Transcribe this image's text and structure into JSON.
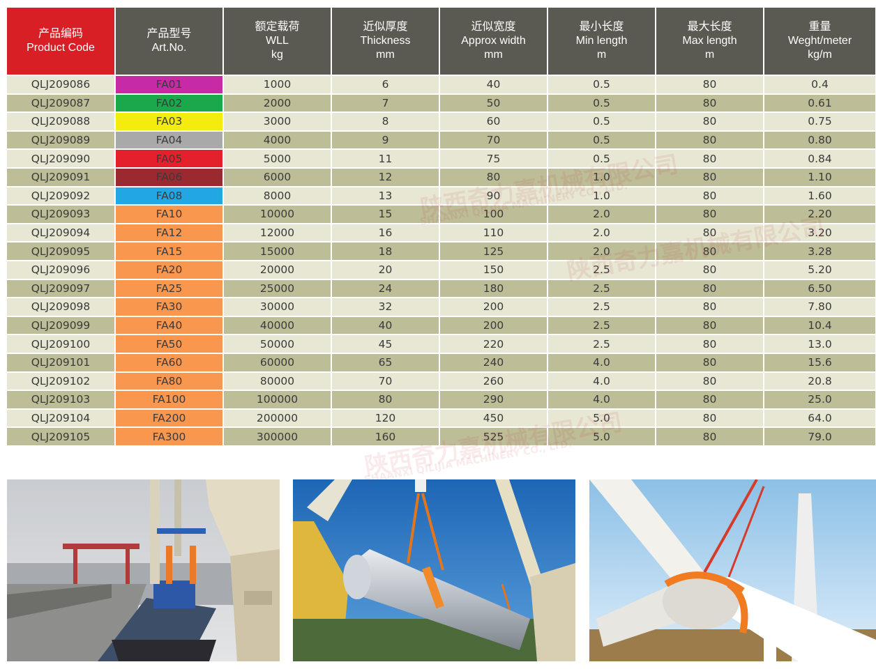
{
  "table": {
    "headers": [
      {
        "lines": [
          "产品编码",
          "Product Code"
        ]
      },
      {
        "lines": [
          "产品型号",
          "Art.No."
        ]
      },
      {
        "lines": [
          "额定载荷",
          "WLL",
          "kg"
        ]
      },
      {
        "lines": [
          "近似厚度",
          "Thickness",
          "mm"
        ]
      },
      {
        "lines": [
          "近似宽度",
          "Approx width",
          "mm"
        ]
      },
      {
        "lines": [
          "最小长度",
          "Min length",
          "m"
        ]
      },
      {
        "lines": [
          "最大长度",
          "Max length",
          "m"
        ]
      },
      {
        "lines": [
          "重量",
          "Weght/meter",
          "kg/m"
        ]
      }
    ],
    "rows": [
      {
        "code": "QLJ209086",
        "art": "FA01",
        "color": "#c62aa6",
        "wll": "1000",
        "thickness": "6",
        "width": "40",
        "min": "0.5",
        "max": "80",
        "weight": "0.4"
      },
      {
        "code": "QLJ209087",
        "art": "FA02",
        "color": "#1aa84a",
        "wll": "2000",
        "thickness": "7",
        "width": "50",
        "min": "0.5",
        "max": "80",
        "weight": "0.61"
      },
      {
        "code": "QLJ209088",
        "art": "FA03",
        "color": "#f4ec0f",
        "wll": "3000",
        "thickness": "8",
        "width": "60",
        "min": "0.5",
        "max": "80",
        "weight": "0.75"
      },
      {
        "code": "QLJ209089",
        "art": "FA04",
        "color": "#a9a9a9",
        "wll": "4000",
        "thickness": "9",
        "width": "70",
        "min": "0.5",
        "max": "80",
        "weight": "0.80"
      },
      {
        "code": "QLJ209090",
        "art": "FA05",
        "color": "#e3202b",
        "wll": "5000",
        "thickness": "11",
        "width": "75",
        "min": "0.5",
        "max": "80",
        "weight": "0.84"
      },
      {
        "code": "QLJ209091",
        "art": "FA06",
        "color": "#9b2a30",
        "wll": "6000",
        "thickness": "12",
        "width": "80",
        "min": "1.0",
        "max": "80",
        "weight": "1.10"
      },
      {
        "code": "QLJ209092",
        "art": "FA08",
        "color": "#23a7e4",
        "wll": "8000",
        "thickness": "13",
        "width": "90",
        "min": "1.0",
        "max": "80",
        "weight": "1.60"
      },
      {
        "code": "QLJ209093",
        "art": "FA10",
        "color": "#f9974f",
        "wll": "10000",
        "thickness": "15",
        "width": "100",
        "min": "2.0",
        "max": "80",
        "weight": "2.20"
      },
      {
        "code": "QLJ209094",
        "art": "FA12",
        "color": "#f9974f",
        "wll": "12000",
        "thickness": "16",
        "width": "110",
        "min": "2.0",
        "max": "80",
        "weight": "3.20"
      },
      {
        "code": "QLJ209095",
        "art": "FA15",
        "color": "#f9974f",
        "wll": "15000",
        "thickness": "18",
        "width": "125",
        "min": "2.0",
        "max": "80",
        "weight": "3.28"
      },
      {
        "code": "QLJ209096",
        "art": "FA20",
        "color": "#f9974f",
        "wll": "20000",
        "thickness": "20",
        "width": "150",
        "min": "2.5",
        "max": "80",
        "weight": "5.20"
      },
      {
        "code": "QLJ209097",
        "art": "FA25",
        "color": "#f9974f",
        "wll": "25000",
        "thickness": "24",
        "width": "180",
        "min": "2.5",
        "max": "80",
        "weight": "6.50"
      },
      {
        "code": "QLJ209098",
        "art": "FA30",
        "color": "#f9974f",
        "wll": "30000",
        "thickness": "32",
        "width": "200",
        "min": "2.5",
        "max": "80",
        "weight": "7.80"
      },
      {
        "code": "QLJ209099",
        "art": "FA40",
        "color": "#f9974f",
        "wll": "40000",
        "thickness": "40",
        "width": "200",
        "min": "2.5",
        "max": "80",
        "weight": "10.4"
      },
      {
        "code": "QLJ209100",
        "art": "FA50",
        "color": "#f9974f",
        "wll": "50000",
        "thickness": "45",
        "width": "220",
        "min": "2.5",
        "max": "80",
        "weight": "13.0"
      },
      {
        "code": "QLJ209101",
        "art": "FA60",
        "color": "#f9974f",
        "wll": "60000",
        "thickness": "65",
        "width": "240",
        "min": "4.0",
        "max": "80",
        "weight": "15.6"
      },
      {
        "code": "QLJ209102",
        "art": "FA80",
        "color": "#f9974f",
        "wll": "80000",
        "thickness": "70",
        "width": "260",
        "min": "4.0",
        "max": "80",
        "weight": "20.8"
      },
      {
        "code": "QLJ209103",
        "art": "FA100",
        "color": "#f9974f",
        "wll": "100000",
        "thickness": "80",
        "width": "290",
        "min": "4.0",
        "max": "80",
        "weight": "25.0"
      },
      {
        "code": "QLJ209104",
        "art": "FA200",
        "color": "#f9974f",
        "wll": "200000",
        "thickness": "120",
        "width": "450",
        "min": "5.0",
        "max": "80",
        "weight": "64.0"
      },
      {
        "code": "QLJ209105",
        "art": "FA300",
        "color": "#f9974f",
        "wll": "300000",
        "thickness": "160",
        "width": "525",
        "min": "5.0",
        "max": "80",
        "weight": "79.0"
      }
    ]
  },
  "watermark": {
    "cn": "陕西奇力嘉机械有限公司",
    "en": "SHAANXI QILIJIA MACHINERY CO., LTD."
  },
  "photos": [
    {
      "name": "ship-crane-photo"
    },
    {
      "name": "vessel-lift-photo"
    },
    {
      "name": "wind-turbine-photo"
    }
  ]
}
